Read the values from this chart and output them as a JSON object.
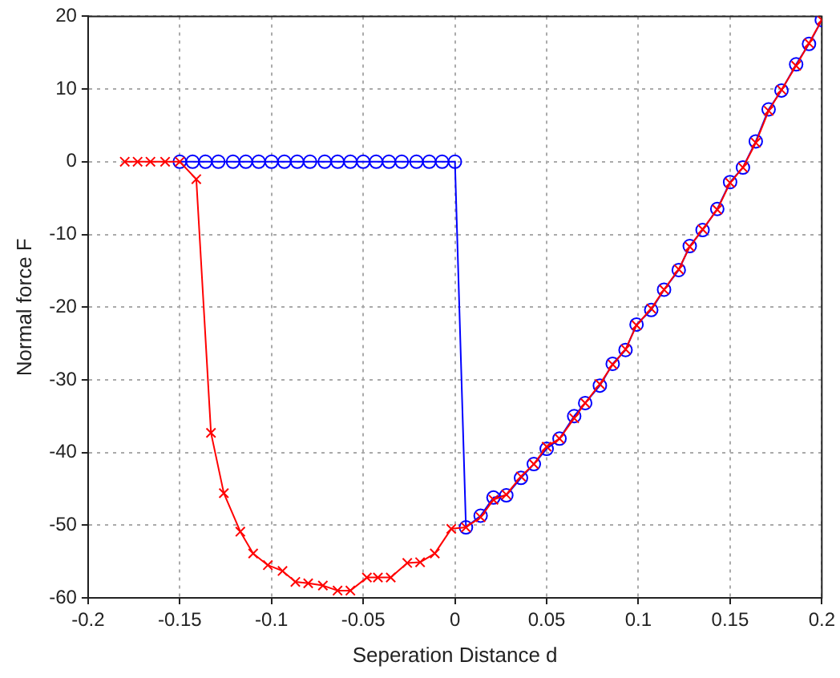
{
  "chart_data": {
    "type": "line",
    "xlabel": "Seperation Distance d",
    "ylabel": "Normal force F",
    "xlim": [
      -0.2,
      0.2
    ],
    "xticks": [
      -0.2,
      -0.15,
      -0.1,
      -0.05,
      0,
      0.05,
      0.1,
      0.15,
      0.2
    ],
    "ylim": [
      -60,
      20
    ],
    "yticks": [
      -60,
      -50,
      -40,
      -30,
      -20,
      -10,
      0,
      10,
      20
    ],
    "grid": true,
    "legend": false,
    "line_style": "solid",
    "series": [
      {
        "color": "#0000ff",
        "marker": "circle",
        "x": [
          -0.15,
          -0.143,
          -0.136,
          -0.129,
          -0.121,
          -0.114,
          -0.107,
          -0.1,
          -0.093,
          -0.086,
          -0.079,
          -0.071,
          -0.064,
          -0.057,
          -0.05,
          -0.043,
          -0.036,
          -0.029,
          -0.021,
          -0.014,
          -0.007,
          0,
          0.006,
          0.014,
          0.021,
          0.028,
          0.036,
          0.043,
          0.05,
          0.057,
          0.065,
          0.071,
          0.079,
          0.086,
          0.093,
          0.099,
          0.107,
          0.114,
          0.122,
          0.128,
          0.135,
          0.143,
          0.15,
          0.157,
          0.164,
          0.171,
          0.178,
          0.186,
          0.193,
          0.2
        ],
        "values": [
          0,
          0,
          0,
          0,
          0,
          0,
          0,
          0,
          0,
          0,
          0,
          0,
          0,
          0,
          0,
          0,
          0,
          0,
          0,
          0,
          0,
          0,
          -50.3,
          -48.7,
          -46.2,
          -45.9,
          -43.5,
          -41.6,
          -39.5,
          -38.1,
          -35,
          -33.2,
          -30.8,
          -27.8,
          -25.9,
          -22.4,
          -20.4,
          -17.6,
          -14.9,
          -11.6,
          -9.4,
          -6.5,
          -2.8,
          -0.8,
          2.8,
          7.2,
          9.8,
          13.4,
          16.2,
          19.5
        ]
      },
      {
        "color": "#ff0000",
        "marker": "cross",
        "x": [
          -0.18,
          -0.173,
          -0.166,
          -0.158,
          -0.15,
          -0.141,
          -0.133,
          -0.126,
          -0.117,
          -0.11,
          -0.102,
          -0.094,
          -0.087,
          -0.08,
          -0.072,
          -0.064,
          -0.057,
          -0.048,
          -0.042,
          -0.035,
          -0.026,
          -0.019,
          -0.011,
          -0.002,
          0.006,
          0.014,
          0.021,
          0.028,
          0.036,
          0.043,
          0.05,
          0.057,
          0.065,
          0.071,
          0.079,
          0.086,
          0.093,
          0.099,
          0.107,
          0.114,
          0.122,
          0.128,
          0.135,
          0.143,
          0.15,
          0.157,
          0.164,
          0.171,
          0.178,
          0.186,
          0.193,
          0.2
        ],
        "values": [
          0,
          0,
          0,
          0,
          0,
          -2.4,
          -37.3,
          -45.6,
          -50.9,
          -53.9,
          -55.5,
          -56.3,
          -57.8,
          -58,
          -58.3,
          -59,
          -59,
          -57.2,
          -57.2,
          -57.2,
          -55.2,
          -55.1,
          -53.9,
          -50.5,
          -50.3,
          -48.9,
          -46.5,
          -45.8,
          -43.3,
          -41.6,
          -39.2,
          -38.1,
          -35.3,
          -33.2,
          -30.6,
          -27.9,
          -25.8,
          -22.5,
          -20.2,
          -17.6,
          -14.8,
          -11.7,
          -9.3,
          -6.6,
          -2.9,
          -0.8,
          2.6,
          7,
          9.9,
          13.2,
          16.3,
          19.5
        ]
      }
    ]
  }
}
